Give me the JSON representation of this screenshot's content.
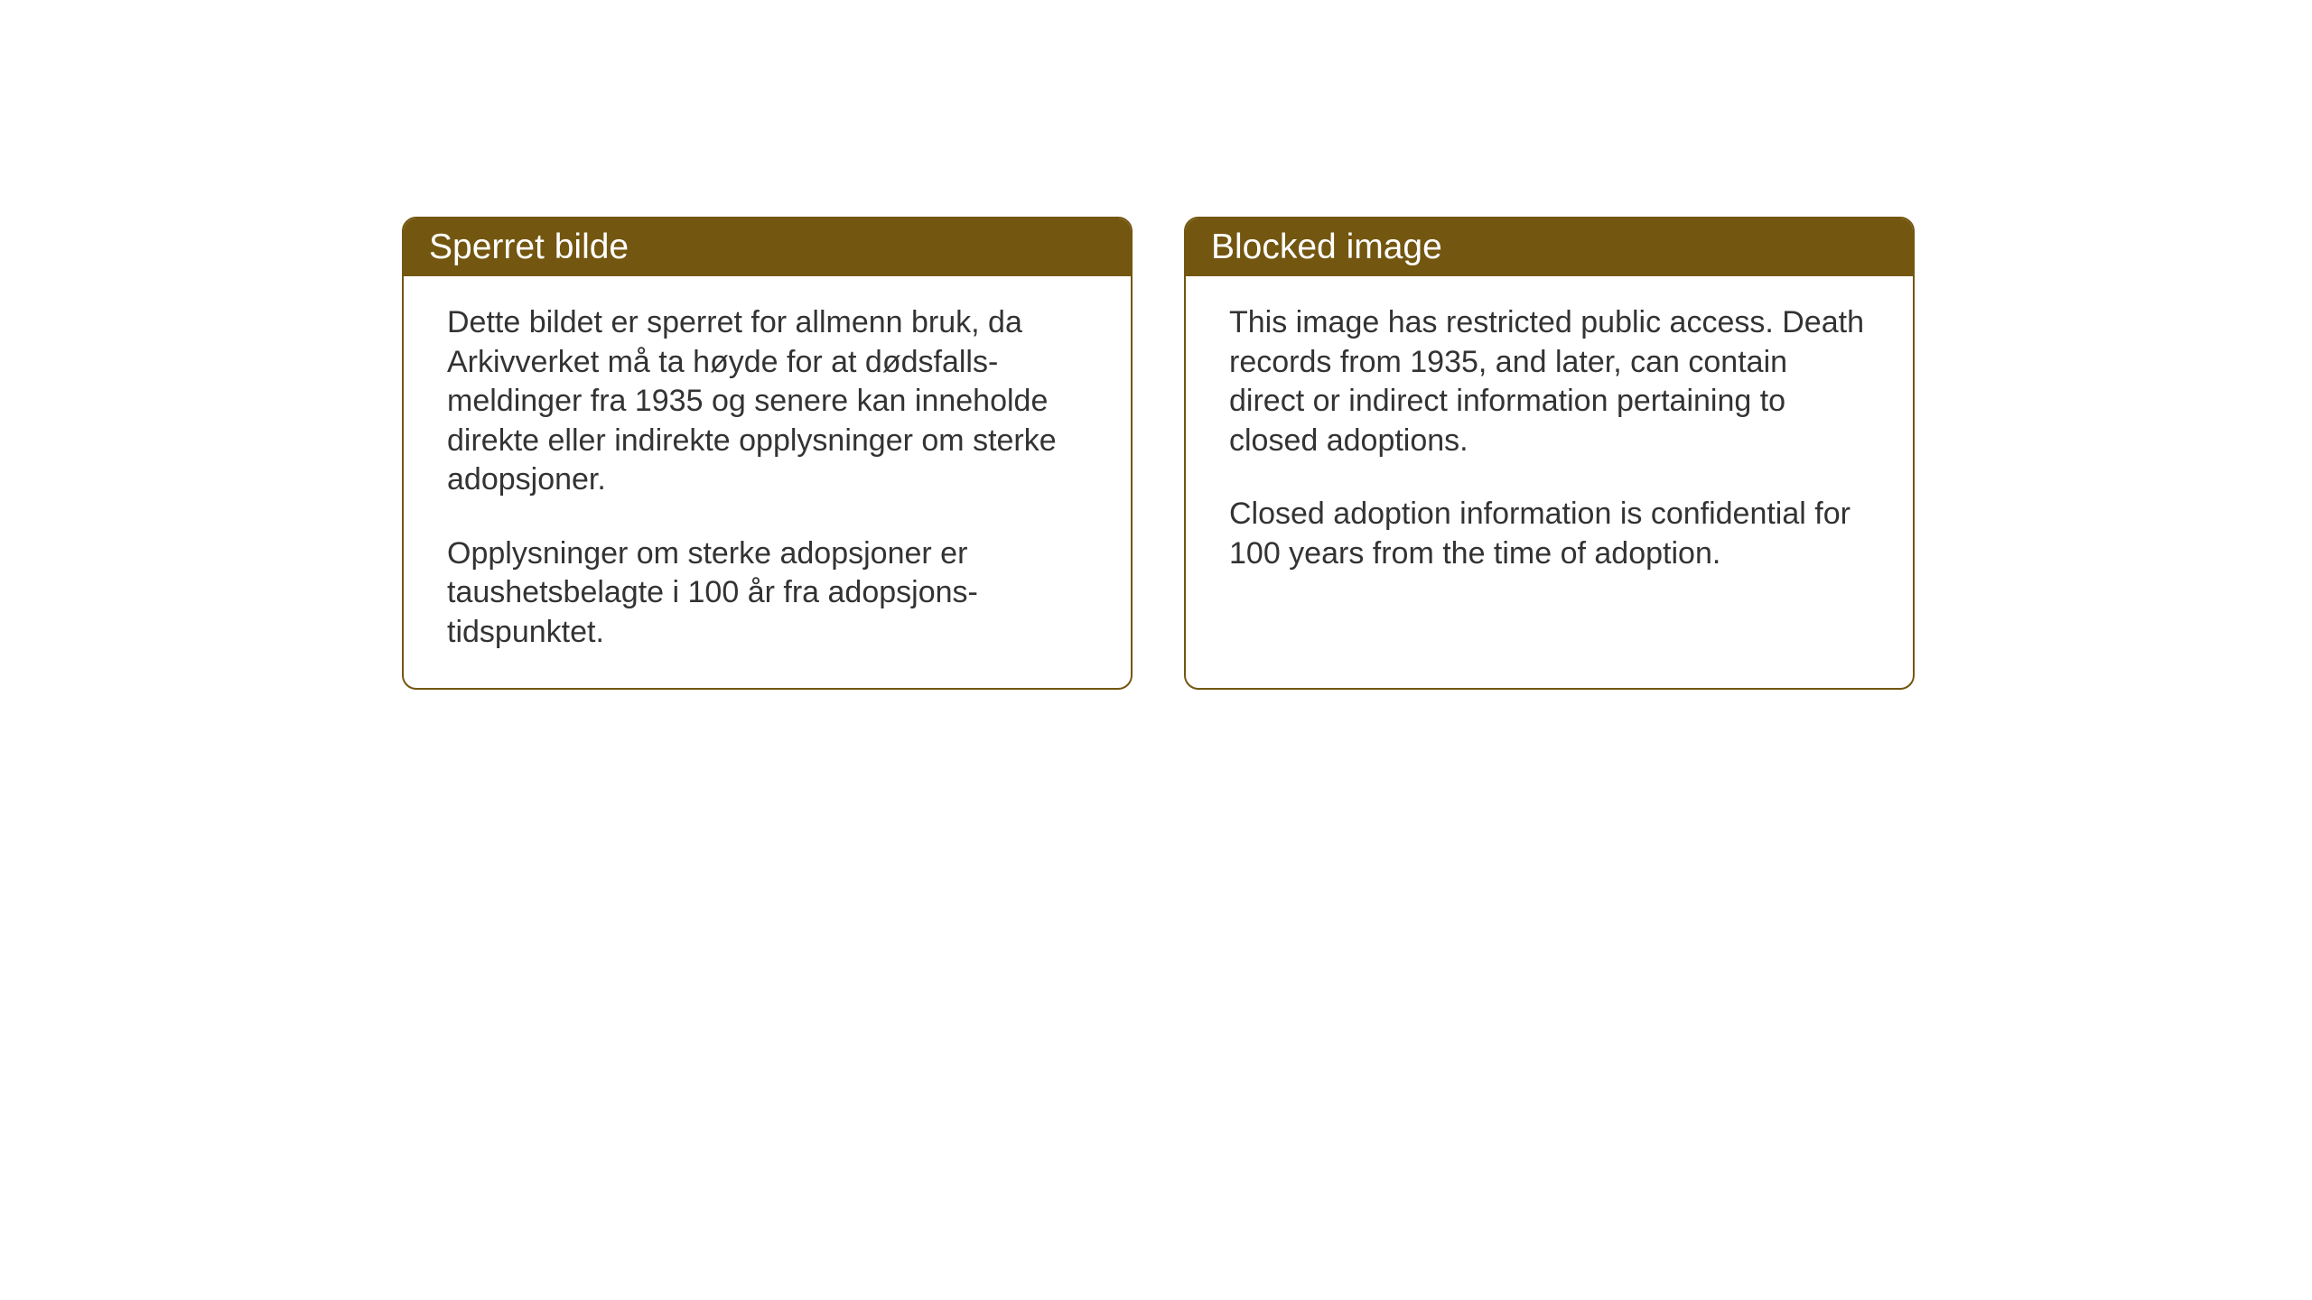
{
  "notices": {
    "left": {
      "title": "Sperret bilde",
      "paragraph1": "Dette bildet er sperret for allmenn bruk, da Arkivverket må ta høyde for at dødsfalls-meldinger fra 1935 og senere kan inneholde direkte eller indirekte opplysninger om sterke adopsjoner.",
      "paragraph2": "Opplysninger om sterke adopsjoner er taushetsbelagte i 100 år fra adopsjons-tidspunktet."
    },
    "right": {
      "title": "Blocked image",
      "paragraph1": "This image has restricted public access. Death records from 1935, and later, can contain direct or indirect information pertaining to closed adoptions.",
      "paragraph2": "Closed adoption information is confidential for 100 years from the time of adoption."
    }
  },
  "styling": {
    "header_bg_color": "#735610",
    "header_text_color": "#ffffff",
    "border_color": "#735610",
    "body_bg_color": "#ffffff",
    "body_text_color": "#333333",
    "page_bg_color": "#ffffff",
    "border_radius": 16,
    "border_width": 2,
    "title_fontsize": 39,
    "body_fontsize": 34
  }
}
